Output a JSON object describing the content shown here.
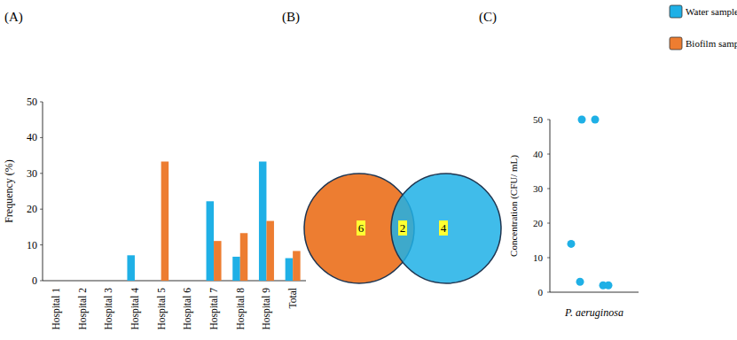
{
  "chart_data": [
    {
      "type": "bar",
      "title": "(A)",
      "y_label": "Frequency (%)",
      "categories": [
        "Hospital 1",
        "Hospital 2",
        "Hospital 3",
        "Hospital 4",
        "Hospital 5",
        "Hospital 6",
        "Hospital 7",
        "Hospital 8",
        "Hospital 9",
        "Total"
      ],
      "series": [
        {
          "name": "Water samples",
          "color": "#1fb0e6",
          "values": [
            0,
            0,
            0,
            7.1,
            0,
            0,
            22.2,
            6.7,
            33.3,
            6.3
          ]
        },
        {
          "name": "Biofilm samples",
          "color": "#ed7d31",
          "values": [
            0,
            0,
            0,
            0,
            33.3,
            0,
            11.1,
            13.3,
            16.7,
            8.3
          ]
        }
      ],
      "ylim": [
        0,
        50
      ],
      "yticks": [
        0,
        10,
        20,
        30,
        40,
        50
      ],
      "grid": false,
      "legend": "top-right"
    },
    {
      "type": "venn",
      "title": "(B)",
      "values": [
        6,
        2,
        4
      ],
      "colors": [
        "#ed7d31",
        "#1fb0e6"
      ],
      "data_labels": true
    },
    {
      "type": "scatter",
      "title": "(C)",
      "y_label": "Concentration (CFU/ mL)",
      "x_label": "P. aeruginosa",
      "series": [
        {
          "color": "#1fb0e6",
          "marker": "circle",
          "x": [
            0.36,
            0.51,
            0.24,
            0.34,
            0.6,
            0.66
          ],
          "values": [
            50,
            50,
            14,
            3,
            2,
            2
          ]
        }
      ],
      "xlim": [
        0,
        1
      ],
      "ylim": [
        0,
        50
      ],
      "yticks": [
        0,
        10,
        20,
        30,
        40,
        50
      ],
      "tick_labels": "y"
    }
  ]
}
